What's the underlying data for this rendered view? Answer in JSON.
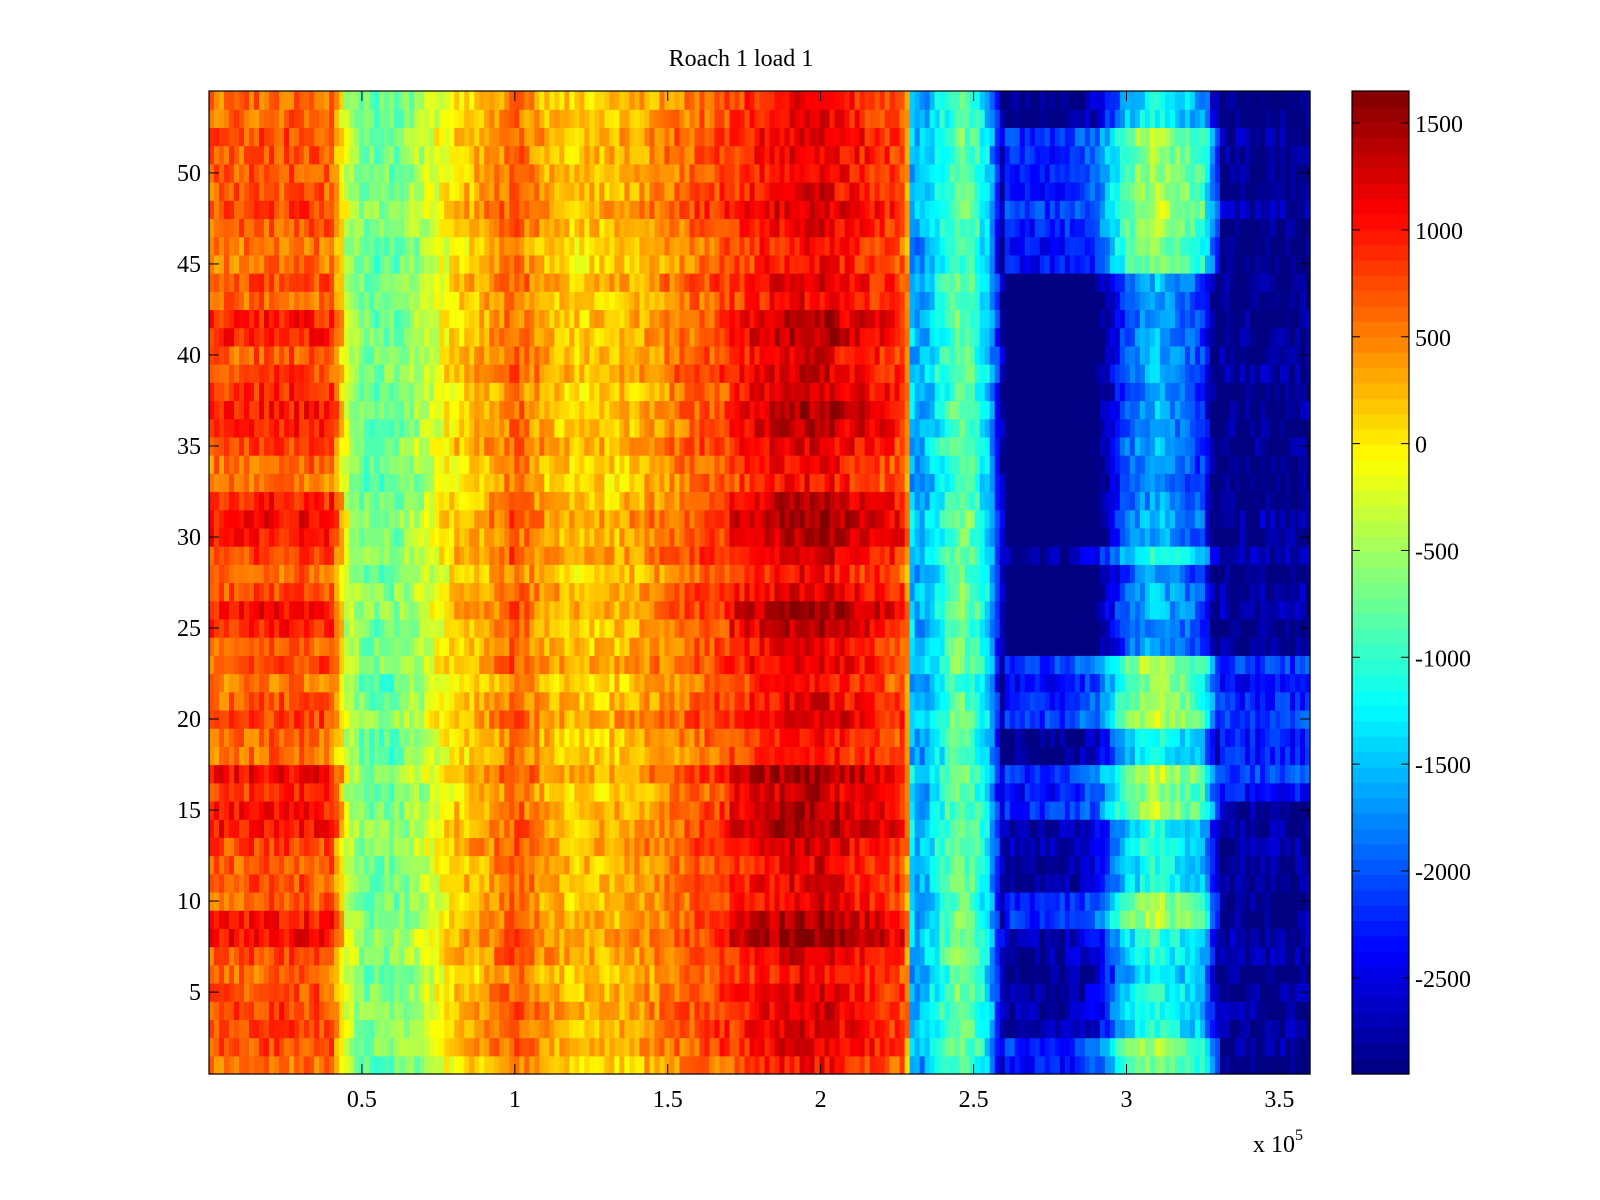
{
  "chart_data": {
    "type": "heatmap",
    "title": "Roach 1 load 1",
    "xlabel": "",
    "ylabel": "",
    "x_scale_label": "x 10",
    "x_scale_exponent": "5",
    "xlim": [
      0,
      3.6
    ],
    "ylim": [
      0.5,
      54.5
    ],
    "x_ticks": [
      0.5,
      1,
      1.5,
      2,
      2.5,
      3,
      3.5
    ],
    "x_tick_labels": [
      "0.5",
      "1",
      "1.5",
      "2",
      "2.5",
      "3",
      "3.5"
    ],
    "y_ticks": [
      5,
      10,
      15,
      20,
      25,
      30,
      35,
      40,
      45,
      50
    ],
    "y_tick_labels": [
      "5",
      "10",
      "15",
      "20",
      "25",
      "30",
      "35",
      "40",
      "45",
      "50"
    ],
    "rows": 54,
    "colormap": "jet",
    "clim": [
      -2950,
      1650
    ],
    "colorbar_ticks": [
      1500,
      1000,
      500,
      0,
      -500,
      -1000,
      -1500,
      -2000,
      -2500
    ],
    "colorbar_tick_labels": [
      "1500",
      "1000",
      "500",
      "0",
      "-500",
      "-1000",
      "-1500",
      "-2000",
      "-2500"
    ],
    "column_profile": {
      "x": [
        0.0,
        0.1,
        0.2,
        0.3,
        0.4,
        0.45,
        0.5,
        0.6,
        0.7,
        0.8,
        0.9,
        1.0,
        1.05,
        1.1,
        1.2,
        1.3,
        1.4,
        1.5,
        1.6,
        1.7,
        1.8,
        1.9,
        2.0,
        2.1,
        2.2,
        2.28,
        2.3,
        2.35,
        2.4,
        2.45,
        2.5,
        2.55,
        2.6,
        2.7,
        2.8,
        2.9,
        3.0,
        3.05,
        3.1,
        3.15,
        3.2,
        3.25,
        3.3,
        3.4,
        3.5,
        3.6
      ],
      "values": [
        600,
        650,
        700,
        700,
        650,
        -300,
        -700,
        -750,
        -400,
        100,
        300,
        650,
        500,
        300,
        150,
        200,
        300,
        500,
        650,
        800,
        1000,
        1150,
        1200,
        1000,
        900,
        700,
        -1700,
        -1500,
        -1100,
        -700,
        -900,
        -1400,
        -2850,
        -2900,
        -2850,
        -2600,
        -1500,
        -1250,
        -1050,
        -1300,
        -1400,
        -1600,
        -2850,
        -2900,
        -2900,
        -2900
      ]
    },
    "row_pattern": "alternating horizontal bands; rows 1-2, 9-10, 15-17, 20-23 and 45-52 are brighter in the 2.6–3.3 region, while rows 24-28 and 30-44 stay deep blue there"
  }
}
